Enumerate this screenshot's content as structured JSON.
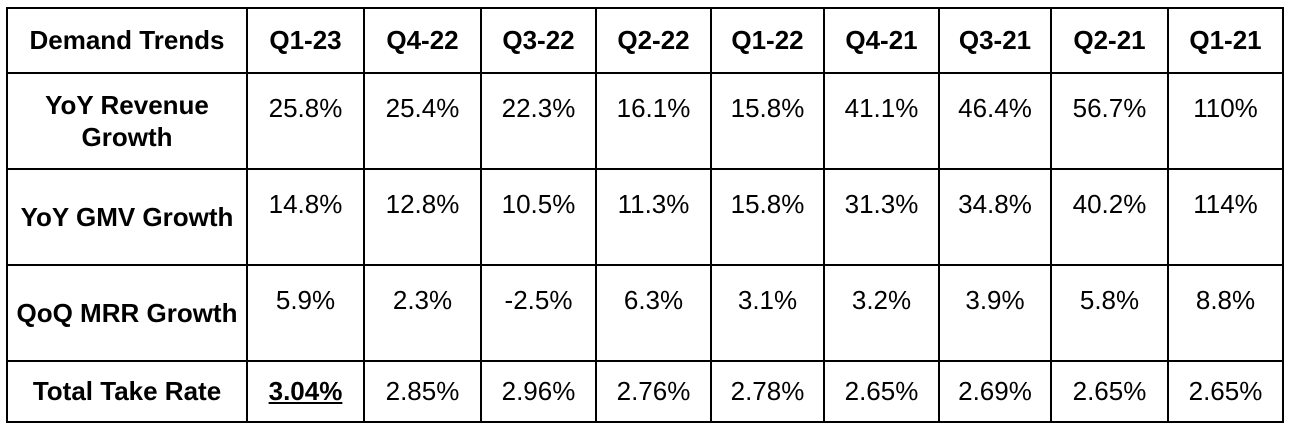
{
  "chart_data": {
    "type": "table",
    "title": "",
    "corner_label": "Demand Trends",
    "columns": [
      "Q1-23",
      "Q4-22",
      "Q3-22",
      "Q2-22",
      "Q1-22",
      "Q4-21",
      "Q3-21",
      "Q2-21",
      "Q1-21"
    ],
    "rows": [
      {
        "label": "YoY Revenue Growth",
        "cells": [
          "25.8%",
          "25.4%",
          "22.3%",
          "16.1%",
          "15.8%",
          "41.1%",
          "46.4%",
          "56.7%",
          "110%"
        ]
      },
      {
        "label": "YoY GMV Growth",
        "cells": [
          "14.8%",
          "12.8%",
          "10.5%",
          "11.3%",
          "15.8%",
          "31.3%",
          "34.8%",
          "40.2%",
          "114%"
        ]
      },
      {
        "label": "QoQ MRR Growth",
        "cells": [
          "5.9%",
          "2.3%",
          "-2.5%",
          "6.3%",
          "3.1%",
          "3.2%",
          "3.9%",
          "5.8%",
          "8.8%"
        ]
      },
      {
        "label": "Total Take Rate",
        "cells": [
          "3.04%",
          "2.85%",
          "2.96%",
          "2.76%",
          "2.78%",
          "2.65%",
          "2.69%",
          "2.65%",
          "2.65%"
        ],
        "highlight_index": 0
      }
    ]
  }
}
